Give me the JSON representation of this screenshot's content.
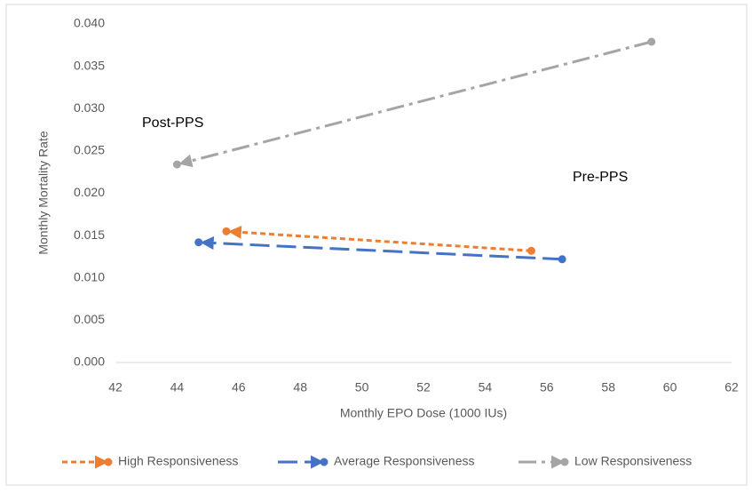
{
  "chart_data": {
    "type": "scatter",
    "x_label": "Monthly EPO Dose (1000 IUs)",
    "y_label": "Monthly Mortality Rate",
    "annotations": [
      "Post-PPS",
      "Pre-PPS"
    ],
    "xlim": [
      42,
      62
    ],
    "xticks": [
      42,
      44,
      46,
      48,
      50,
      52,
      54,
      56,
      58,
      60,
      62
    ],
    "ylim": [
      0,
      0.04
    ],
    "yticks": [
      {
        "value": 0,
        "label": "0.000"
      },
      {
        "value": 0.005,
        "label": "0.005"
      },
      {
        "value": 0.01,
        "label": "0.010"
      },
      {
        "value": 0.015,
        "label": "0.015"
      },
      {
        "value": 0.02,
        "label": "0.020"
      },
      {
        "value": 0.025,
        "label": "0.025"
      },
      {
        "value": 0.03,
        "label": "0.030"
      },
      {
        "value": 0.035,
        "label": "0.035"
      },
      {
        "value": 0.04,
        "label": "0.040"
      }
    ],
    "grid": false,
    "legend": "bottom",
    "series": [
      {
        "name": "High Responsiveness",
        "color": "#ed7d31",
        "x": [
          55.5,
          45.6
        ],
        "values": [
          0.0132,
          0.0155
        ]
      },
      {
        "name": "Average Responsiveness",
        "color": "#4472c4",
        "x": [
          56.5,
          44.7
        ],
        "values": [
          0.0122,
          0.0142
        ]
      },
      {
        "name": "Low Responsiveness",
        "color": "#a5a5a5",
        "x": [
          59.4,
          44.0
        ],
        "values": [
          0.0379,
          0.0234
        ]
      }
    ]
  }
}
